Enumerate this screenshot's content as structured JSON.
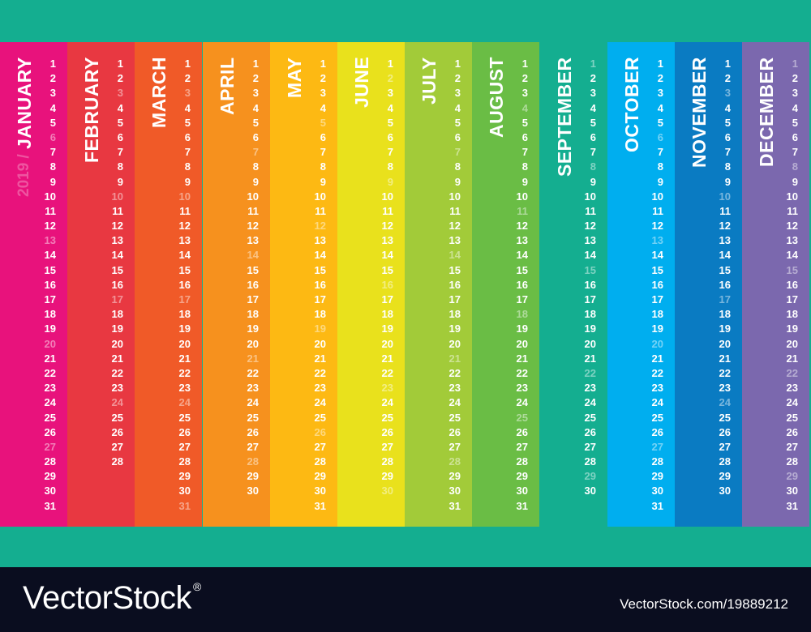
{
  "calendar": {
    "year": "2019 /",
    "months": [
      {
        "name": "JANUARY",
        "days": 31,
        "color": "#e8127c",
        "weekend": [
          6,
          13,
          20,
          27
        ]
      },
      {
        "name": "FEBRUARY",
        "days": 28,
        "color": "#e83841",
        "weekend": [
          3,
          10,
          17,
          24
        ]
      },
      {
        "name": "MARCH",
        "days": 31,
        "color": "#f05a28",
        "weekend": [
          3,
          10,
          17,
          24,
          31
        ]
      },
      {
        "name": "APRIL",
        "days": 30,
        "color": "#f6911e",
        "weekend": [
          7,
          14,
          21,
          28
        ]
      },
      {
        "name": "MAY",
        "days": 31,
        "color": "#fdb913",
        "weekend": [
          5,
          12,
          19,
          26
        ]
      },
      {
        "name": "JUNE",
        "days": 30,
        "color": "#e9e11c",
        "weekend": [
          2,
          9,
          16,
          23,
          30
        ]
      },
      {
        "name": "JULY",
        "days": 31,
        "color": "#a2cb39",
        "weekend": [
          7,
          14,
          21,
          28
        ]
      },
      {
        "name": "AUGUST",
        "days": 31,
        "color": "#6abd45",
        "weekend": [
          4,
          11,
          18,
          25
        ]
      },
      {
        "name": "SEPTEMBER",
        "days": 30,
        "color": "#14ae90",
        "weekend": [
          1,
          8,
          15,
          22,
          29
        ]
      },
      {
        "name": "OCTOBER",
        "days": 31,
        "color": "#00aeef",
        "weekend": [
          6,
          13,
          20,
          27
        ]
      },
      {
        "name": "NOVEMBER",
        "days": 30,
        "color": "#0a7bc2",
        "weekend": [
          3,
          10,
          17,
          24
        ]
      },
      {
        "name": "DECEMBER",
        "days": 31,
        "color": "#7b68ae",
        "weekend": [
          1,
          8,
          15,
          22,
          29
        ]
      }
    ]
  },
  "footer": {
    "brand_left": "VectorStock",
    "trademark": "®",
    "brand_right": "VectorStock.com/19889212"
  }
}
